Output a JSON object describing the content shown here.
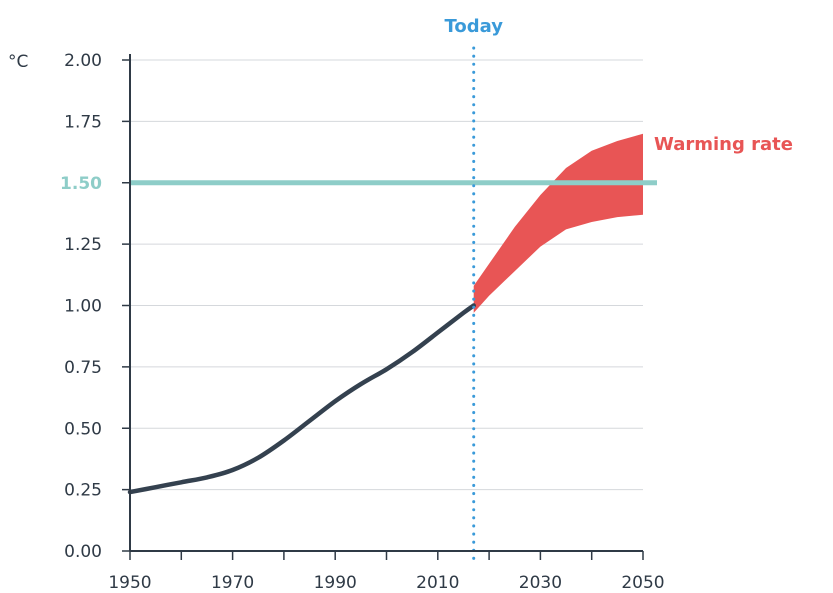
{
  "colors": {
    "line": "#34414f",
    "band": "#e85555",
    "reference": "#8ecdc8",
    "today": "#3a9ad9",
    "axis": "#2f3a46",
    "grid": "#d5d8dc"
  },
  "chart_data": {
    "type": "line",
    "ylabel": "°C",
    "xlabel": "",
    "title": "",
    "xlim": [
      1950,
      2050
    ],
    "ylim": [
      0,
      2
    ],
    "grid": "horizontal",
    "x_ticks": [
      "1950",
      "1970",
      "1990",
      "2010",
      "2030",
      "2050"
    ],
    "x_minor_ticks": [
      1960,
      1980,
      2000,
      2020,
      2040
    ],
    "y_ticks": [
      "0.00",
      "0.25",
      "0.50",
      "0.75",
      "1.00",
      "1.25",
      "1.50",
      "1.75",
      "2.00"
    ],
    "series": [
      {
        "x": [
          1950,
          1955,
          1960,
          1965,
          1970,
          1975,
          1980,
          1985,
          1990,
          1995,
          2000,
          2005,
          2010,
          2015,
          2017
        ],
        "values": [
          0.24,
          0.26,
          0.28,
          0.3,
          0.33,
          0.38,
          0.45,
          0.53,
          0.61,
          0.68,
          0.74,
          0.81,
          0.89,
          0.97,
          1.0
        ]
      }
    ],
    "band": {
      "label": "Warming rate",
      "x": [
        2017,
        2020,
        2025,
        2030,
        2035,
        2040,
        2045,
        2050
      ],
      "upper": [
        1.08,
        1.17,
        1.32,
        1.45,
        1.56,
        1.63,
        1.67,
        1.7
      ],
      "lower": [
        0.97,
        1.04,
        1.14,
        1.24,
        1.31,
        1.34,
        1.36,
        1.37
      ]
    },
    "reference_line": {
      "y": 1.5,
      "label": "1.50"
    },
    "vertical_marker": {
      "x": 2017,
      "label": "Today"
    }
  }
}
